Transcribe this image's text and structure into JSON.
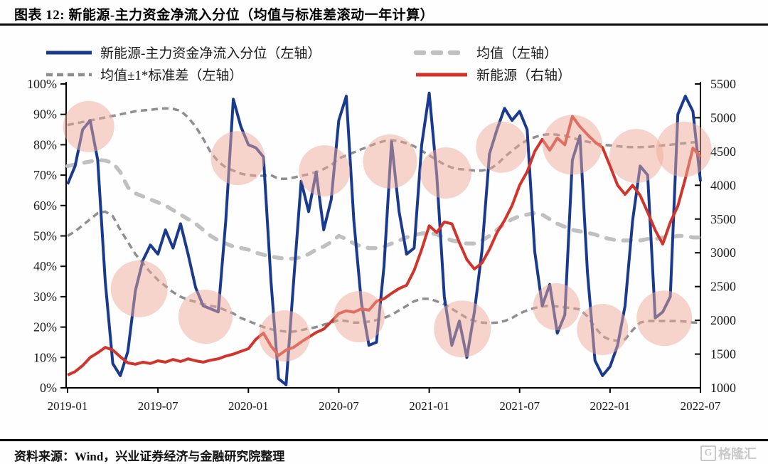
{
  "title": "图表 12:  新能源-主力资金净流入分位（均值与标准差滚动一年计算）",
  "footer": {
    "source": "资料来源：Wind，兴业证券经济与金融研究院整理",
    "logo_g": "G",
    "logo_text": "格隆汇"
  },
  "chart_data": {
    "type": "line",
    "title": "新能源-主力资金净流入分位（均值与标准差滚动一年计算）",
    "x_ticks": [
      "2019-01",
      "2019-07",
      "2020-01",
      "2020-07",
      "2021-01",
      "2021-07",
      "2022-01",
      "2022-07"
    ],
    "x_resolution": "semi-monthly, 85 points from 2019-01 to 2022-07",
    "left_axis": {
      "min": 0,
      "max": 100,
      "format": "percent",
      "ticks": [
        "100%",
        "90%",
        "80%",
        "70%",
        "60%",
        "50%",
        "40%",
        "30%",
        "20%",
        "10%",
        "0%"
      ]
    },
    "right_axis": {
      "min": 1000,
      "max": 5500,
      "ticks": [
        "5500",
        "5000",
        "4500",
        "4000",
        "3500",
        "3000",
        "2500",
        "2000",
        "1500",
        "1000"
      ]
    },
    "grid": false,
    "legend_position": "top",
    "legend": [
      {
        "label": "新能源-主力资金净流入分位（左轴）",
        "color": "#1a3a90",
        "style": "solid",
        "row": 0,
        "col": 0
      },
      {
        "label": "均值（左轴）",
        "color": "#c0c0c0",
        "style": "dash-round",
        "row": 0,
        "col": 1
      },
      {
        "label": "均值±1*标准差（左轴）",
        "color": "#8f8f8f",
        "style": "dash",
        "row": 1,
        "col": 0
      },
      {
        "label": "新能源（右轴）",
        "color": "#d2342b",
        "style": "solid",
        "row": 1,
        "col": 1
      }
    ],
    "series": [
      {
        "name": "均值-1*标准差（左轴）",
        "key": "lower-std-line",
        "axis": "left",
        "color": "#8f8f8f",
        "style": "dash",
        "width": 3.5,
        "values": [
          50,
          51.5,
          53.5,
          55.5,
          57.5,
          58,
          56.5,
          52,
          48,
          44,
          41,
          38,
          35.5,
          33.5,
          31.5,
          30,
          29,
          28.3,
          27.5,
          27,
          26.5,
          25.5,
          24.5,
          23,
          22,
          21,
          20,
          19.3,
          18.8,
          18.5,
          18.5,
          19,
          19.5,
          20,
          20.8,
          21.5,
          22.3,
          22,
          21.5,
          21.5,
          21.8,
          22.3,
          23,
          24,
          25.5,
          27,
          28.5,
          29.3,
          29.3,
          28.5,
          27.5,
          26,
          24.5,
          23,
          22,
          21.5,
          21.3,
          21.5,
          22,
          23,
          24.5,
          25.5,
          26.3,
          26.8,
          27,
          26.8,
          26.5,
          26.2,
          25.8,
          23.5,
          20,
          17,
          15.8,
          15.5,
          16,
          19,
          21.5,
          22,
          22,
          22,
          22,
          22,
          21.8,
          21.5,
          21.5
        ]
      },
      {
        "name": "均值+1*标准差（左轴）",
        "key": "upper-std-line",
        "axis": "left",
        "color": "#8f8f8f",
        "style": "dash",
        "width": 3.5,
        "values": [
          86.5,
          87,
          87.5,
          88,
          88.5,
          89,
          89.5,
          90,
          90.5,
          91,
          91.3,
          91.5,
          91.8,
          92,
          91.8,
          91.2,
          89,
          86,
          82,
          77.5,
          74.5,
          72.5,
          71.5,
          70.5,
          70,
          69.8,
          69.8,
          70,
          68.8,
          68.8,
          69.2,
          69.8,
          70.3,
          71,
          72,
          73.3,
          75.5,
          76.5,
          77.5,
          78.5,
          79.5,
          80.5,
          81.2,
          81.5,
          81.2,
          80.5,
          79.5,
          78,
          76.5,
          75,
          73.5,
          72.5,
          72,
          71.8,
          71.5,
          71.5,
          72,
          73.5,
          76,
          78,
          80,
          81.5,
          82.5,
          83.2,
          83.5,
          83.3,
          83,
          82.3,
          81.5,
          81,
          80.5,
          80,
          79.8,
          79.5,
          79.3,
          79.2,
          79.2,
          79.3,
          79.5,
          79.8,
          80,
          80.3,
          80.5,
          80.8,
          81
        ]
      },
      {
        "name": "均值（左轴）",
        "key": "mean-line",
        "axis": "left",
        "color": "#c0c0c0",
        "style": "dash-round",
        "width": 5.5,
        "values": [
          73,
          73.5,
          74,
          74.5,
          75,
          74.8,
          74,
          71,
          66,
          64,
          63,
          62,
          61,
          60,
          58.5,
          57,
          55.5,
          54,
          52,
          50,
          48.5,
          47.5,
          46.5,
          46,
          45.5,
          44.5,
          43.8,
          43.2,
          42.8,
          42.5,
          42.5,
          43,
          44,
          45.5,
          46.5,
          48,
          50,
          49,
          47.5,
          46.5,
          46,
          46,
          46.5,
          47.5,
          48.5,
          49.5,
          50.3,
          50.8,
          51,
          50.5,
          49.5,
          48.5,
          48,
          47.5,
          47.5,
          48.5,
          50,
          52,
          54,
          55.5,
          56.5,
          57,
          57.5,
          57,
          55.5,
          54,
          53,
          52,
          51.5,
          51,
          50.5,
          49.5,
          49,
          48.5,
          48.5,
          48.5,
          48.5,
          49,
          49,
          49.5,
          49.5,
          50,
          50,
          49.5,
          49.5
        ]
      },
      {
        "name": "新能源-主力资金净流入分位（左轴）",
        "key": "percentile-line",
        "axis": "left",
        "color": "#1a3a90",
        "style": "solid",
        "width": 4,
        "values": [
          67,
          73,
          85,
          88,
          75,
          35,
          8,
          4,
          12,
          32,
          42,
          47,
          44,
          52,
          46,
          54,
          44,
          33,
          27,
          26,
          25,
          55,
          95,
          86,
          80,
          79,
          76,
          35,
          3,
          1,
          35,
          68,
          58,
          71,
          52,
          62,
          88,
          96,
          55,
          28,
          14,
          15,
          40,
          81,
          58,
          44,
          46,
          80,
          97,
          70,
          30,
          14,
          22,
          10,
          25,
          45,
          77,
          85,
          92,
          88,
          91,
          85,
          45,
          27,
          34,
          18,
          24,
          75,
          83,
          38,
          9,
          4,
          7,
          14,
          27,
          55,
          73,
          70,
          23,
          25,
          30,
          90,
          96,
          91,
          68
        ]
      },
      {
        "name": "新能源（右轴）",
        "key": "index-price-line",
        "axis": "right",
        "color": "#d2342b",
        "style": "solid",
        "width": 4,
        "values": [
          1190,
          1240,
          1330,
          1450,
          1520,
          1600,
          1560,
          1460,
          1370,
          1350,
          1380,
          1360,
          1400,
          1380,
          1420,
          1390,
          1430,
          1400,
          1380,
          1410,
          1430,
          1470,
          1500,
          1540,
          1580,
          1720,
          1810,
          1620,
          1480,
          1560,
          1600,
          1680,
          1750,
          1820,
          1870,
          1980,
          2100,
          2140,
          2120,
          2170,
          2150,
          2280,
          2320,
          2400,
          2470,
          2520,
          2740,
          3050,
          3400,
          3300,
          3455,
          3430,
          3150,
          2900,
          2760,
          2850,
          3050,
          3300,
          3480,
          3700,
          4000,
          4200,
          4500,
          4680,
          4520,
          4700,
          4600,
          5020,
          4870,
          4750,
          4640,
          4560,
          4285,
          4000,
          3865,
          4000,
          3850,
          3600,
          3335,
          3130,
          3450,
          3690,
          4100,
          4550,
          4420
        ]
      }
    ],
    "highlights_note": "translucent pink emphasis circles; x = point index (semi-monthly), y = left-axis percent, r = radius px",
    "highlights": [
      [
        2.8,
        86,
        36
      ],
      [
        22.6,
        75.6,
        38
      ],
      [
        34.1,
        71.4,
        36
      ],
      [
        42.8,
        74.5,
        38
      ],
      [
        50.2,
        70.7,
        36
      ],
      [
        57.6,
        79.2,
        36
      ],
      [
        67,
        80,
        42
      ],
      [
        75.5,
        76.3,
        38
      ],
      [
        81.8,
        78.5,
        39
      ],
      [
        9.5,
        32.6,
        40
      ],
      [
        18.3,
        23.4,
        38
      ],
      [
        28.8,
        17.1,
        36
      ],
      [
        38.7,
        23.4,
        36
      ],
      [
        52.4,
        19.4,
        40
      ],
      [
        64.9,
        26.7,
        33
      ],
      [
        71,
        19.2,
        36
      ],
      [
        79.2,
        22.9,
        39
      ]
    ],
    "colors": {
      "highlight": "#eda997",
      "axis": "#000000",
      "tick_label": "#1a1a1a"
    }
  }
}
